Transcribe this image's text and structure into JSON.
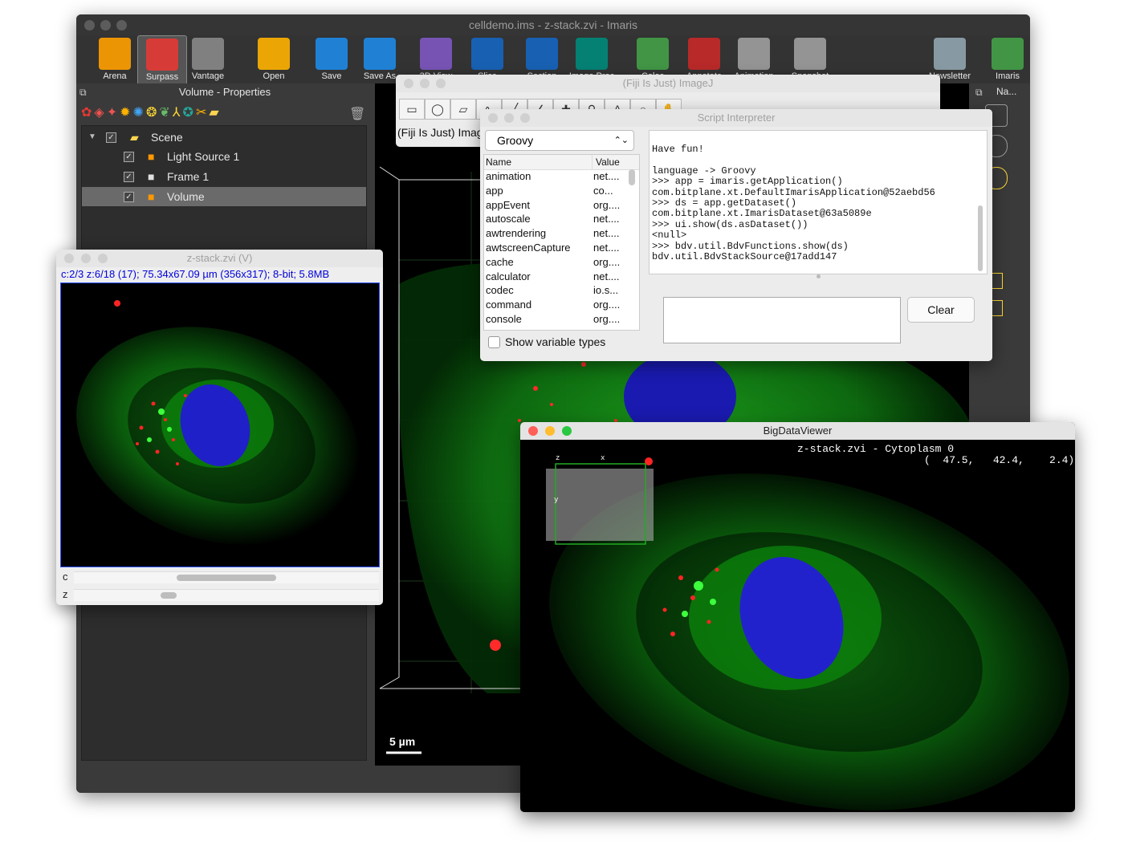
{
  "imaris": {
    "title": "celldemo.ims - z-stack.zvi - Imaris",
    "toolbar": [
      {
        "label": "Arena",
        "icon": "arena-icon",
        "color": "#ffa000"
      },
      {
        "label": "Surpass",
        "icon": "surpass-icon",
        "color": "#e53935"
      },
      {
        "label": "Vantage",
        "icon": "vantage-icon",
        "color": "#888888"
      },
      {
        "label": "Open",
        "icon": "folder-icon",
        "color": "#ffb300"
      },
      {
        "label": "Save",
        "icon": "save-icon",
        "color": "#1e88e5"
      },
      {
        "label": "Save As",
        "icon": "save-as-icon",
        "color": "#1e88e5"
      },
      {
        "label": "3D View",
        "icon": "3d-view-icon",
        "color": "#7e57c2"
      },
      {
        "label": "Slice",
        "icon": "slice-icon",
        "color": "#1565c0"
      },
      {
        "label": "Section",
        "icon": "section-icon",
        "color": "#1565c0"
      },
      {
        "label": "Image Proc",
        "icon": "image-proc-icon",
        "color": "#00897b"
      },
      {
        "label": "Coloc",
        "icon": "coloc-icon",
        "color": "#43a047"
      },
      {
        "label": "Annotate",
        "icon": "annotate-icon",
        "color": "#c62828"
      },
      {
        "label": "Animation",
        "icon": "animation-icon",
        "color": "#9e9e9e"
      },
      {
        "label": "Snapshot",
        "icon": "camera-icon",
        "color": "#9e9e9e"
      },
      {
        "label": "Newsletter",
        "icon": "mail-icon",
        "color": "#90a4ae"
      },
      {
        "label": "Imaris",
        "icon": "globe-icon",
        "color": "#43a047"
      }
    ],
    "panel_title": "Volume - Properties",
    "right_panel_label": "Na...",
    "scene": {
      "root": "Scene",
      "items": [
        {
          "label": "Light Source 1",
          "checked": true,
          "selected": false
        },
        {
          "label": "Frame 1",
          "checked": true,
          "selected": false
        },
        {
          "label": "Volume",
          "checked": true,
          "selected": true
        }
      ]
    },
    "scale_bar": "5 µm"
  },
  "zstack": {
    "title": "z-stack.zvi (V)",
    "info": "c:2/3 z:6/18 (17); 75.34x67.09 µm (356x317); 8-bit; 5.8MB",
    "slider_c_label": "c",
    "slider_z_label": "z",
    "c_position": 0.5,
    "z_position": 0.31
  },
  "imagej": {
    "title": "(Fiji Is Just) ImageJ",
    "status_text": "(Fiji Is Just) ImageJ"
  },
  "script": {
    "title": "Script Interpreter",
    "language": "Groovy",
    "table_headers": {
      "name": "Name",
      "value": "Value"
    },
    "variables": [
      {
        "name": "animation",
        "value": "net...."
      },
      {
        "name": "app",
        "value": "co..."
      },
      {
        "name": "appEvent",
        "value": "org...."
      },
      {
        "name": "autoscale",
        "value": "net...."
      },
      {
        "name": "awtrendering",
        "value": "net...."
      },
      {
        "name": "awtscreenCapture",
        "value": "net...."
      },
      {
        "name": "cache",
        "value": "org...."
      },
      {
        "name": "calculator",
        "value": "net...."
      },
      {
        "name": "codec",
        "value": "io.s..."
      },
      {
        "name": "command",
        "value": "org...."
      },
      {
        "name": "console",
        "value": "org...."
      }
    ],
    "show_types_label": "Show variable types",
    "console_lines": [
      "Have fun!",
      "",
      "language -> Groovy",
      ">>> app = imaris.getApplication()",
      "com.bitplane.xt.DefaultImarisApplication@52aebd56",
      ">>> ds = app.getDataset()",
      "com.bitplane.xt.ImarisDataset@63a5089e",
      ">>> ui.show(ds.asDataset())",
      "<null>",
      ">>> bdv.util.BdvFunctions.show(ds)",
      "bdv.util.BdvStackSource@17add147"
    ],
    "clear_label": "Clear"
  },
  "bdv": {
    "title": "BigDataViewer",
    "source_label": "z-stack.zvi - Cytoplasm 0",
    "coords": "(  47.5,   42.4,    2.4)",
    "axis_z": "z",
    "axis_x": "x",
    "axis_y": "y"
  }
}
